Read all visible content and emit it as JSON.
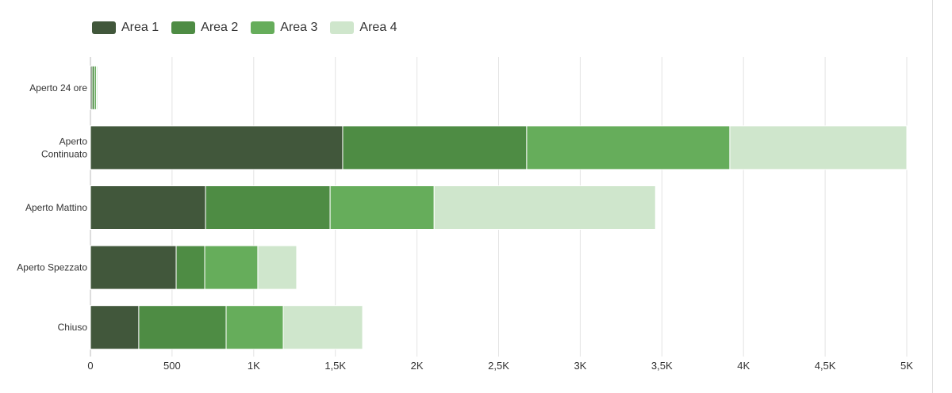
{
  "chart_data": {
    "type": "bar",
    "orientation": "horizontal",
    "stacked": true,
    "categories": [
      "Aperto 24 ore",
      "Aperto Continuato",
      "Aperto Mattino",
      "Aperto Spezzato",
      "Chiuso"
    ],
    "category_lines": [
      [
        "Aperto 24 ore"
      ],
      [
        "Aperto",
        "Continuato"
      ],
      [
        "Aperto Mattino"
      ],
      [
        "Aperto Spezzato"
      ],
      [
        "Chiuso"
      ]
    ],
    "series": [
      {
        "name": "Area 1",
        "color": "#41573b",
        "values": [
          10,
          1545,
          705,
          525,
          296
        ]
      },
      {
        "name": "Area 2",
        "color": "#4e8c44",
        "values": [
          15,
          1127,
          763,
          175,
          535
        ]
      },
      {
        "name": "Area 3",
        "color": "#66ad5b",
        "values": [
          12,
          1244,
          637,
          325,
          350
        ]
      },
      {
        "name": "Area 4",
        "color": "#cfe6cc",
        "values": [
          8,
          1084,
          1356,
          238,
          486
        ]
      }
    ],
    "xlim": [
      0,
      5000
    ],
    "xticks": [
      0,
      500,
      1000,
      1500,
      2000,
      2500,
      3000,
      3500,
      4000,
      4500,
      5000
    ],
    "xtick_labels": [
      "0",
      "500",
      "1K",
      "1,5K",
      "2K",
      "2,5K",
      "3K",
      "3,5K",
      "4K",
      "4,5K",
      "5K"
    ],
    "grid": true,
    "legend_position": "top-left"
  }
}
